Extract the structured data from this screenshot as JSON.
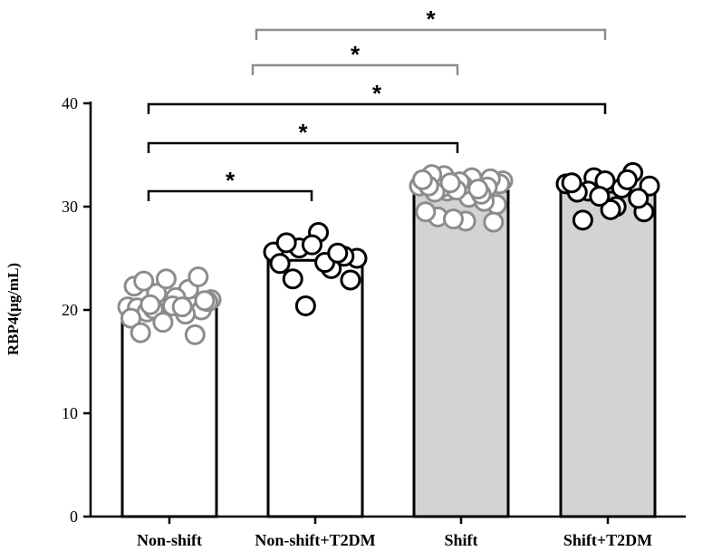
{
  "chart_data": {
    "type": "bar",
    "categories": [
      "Non-shift",
      "Non-shift+T2DM",
      "Shift",
      "Shift+T2DM"
    ],
    "values": [
      20.2,
      24.8,
      31.5,
      31.4
    ],
    "ylabel": "RBP4(μg/mL)",
    "xlabel": "",
    "ylim": [
      0,
      40
    ],
    "yticks": [
      0,
      10,
      20,
      30,
      40
    ],
    "grid": false,
    "bar_colors": [
      "#ffffff",
      "#ffffff",
      "#d3d3d3",
      "#d3d3d3"
    ],
    "point_colors": [
      "#8c8c8c",
      "#000000",
      "#8c8c8c",
      "#000000"
    ],
    "points": [
      [
        20.3,
        20.6,
        20.4,
        20.2,
        20.5,
        20.0,
        19.8,
        20.7,
        21.0,
        21.6,
        22.0,
        22.3,
        23.0,
        23.2,
        22.8,
        21.2,
        20.8,
        20.1,
        19.6,
        19.2,
        18.8,
        17.6,
        17.8,
        20.4,
        20.9,
        20.5,
        20.3
      ],
      [
        25.6,
        24.0,
        26.0,
        25.0,
        24.6,
        23.0,
        22.9,
        27.5,
        26.5,
        25.2,
        26.3,
        24.5,
        25.5,
        20.4
      ],
      [
        32.0,
        31.5,
        31.0,
        32.5,
        33.0,
        32.8,
        32.2,
        31.8,
        30.9,
        30.2,
        29.0,
        28.6,
        28.5,
        31.4,
        32.1,
        32.7,
        33.1,
        32.4,
        31.9,
        32.0,
        31.6,
        30.5,
        29.5,
        28.8,
        31.2,
        32.6,
        32.3,
        31.7
      ],
      [
        32.2,
        32.8,
        31.8,
        32.0,
        31.5,
        30.0,
        29.5,
        28.7,
        29.7,
        30.8,
        31.4,
        32.5,
        33.3,
        32.3,
        31.0,
        32.6
      ]
    ],
    "significance": [
      {
        "from": 2,
        "to": 4,
        "label": "*",
        "color": "#8c8c8c"
      },
      {
        "from": 2,
        "to": 3,
        "label": "*",
        "color": "#8c8c8c"
      },
      {
        "from": 1,
        "to": 4,
        "label": "*",
        "color": "#000000"
      },
      {
        "from": 1,
        "to": 3,
        "label": "*",
        "color": "#000000"
      },
      {
        "from": 1,
        "to": 2,
        "label": "*",
        "color": "#000000"
      }
    ]
  }
}
